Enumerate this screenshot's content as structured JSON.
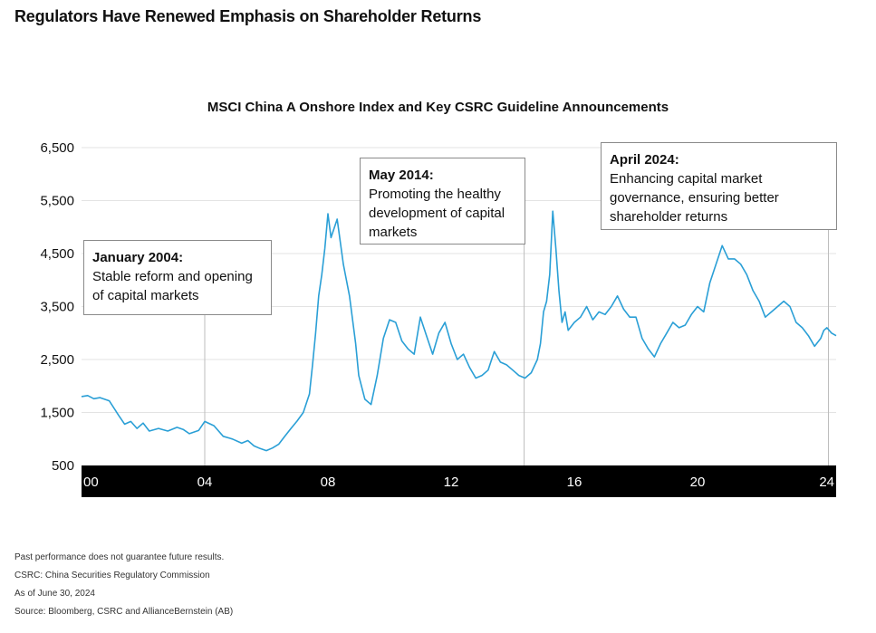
{
  "page_title": "Regulators Have Renewed Emphasis on Shareholder Returns",
  "chart_data": {
    "type": "line",
    "title": "MSCI China A Onshore Index and Key CSRC Guideline Announcements",
    "xlabel": "",
    "ylabel": "",
    "y_ticks": [
      "6,500",
      "5,500",
      "4,500",
      "3,500",
      "2,500",
      "1,500",
      "500"
    ],
    "ylim": [
      500,
      6500
    ],
    "x_ticks": [
      "00",
      "04",
      "08",
      "12",
      "16",
      "20",
      "24"
    ],
    "xlim": [
      2000.0,
      2024.5
    ],
    "grid": "horizontal",
    "series": [
      {
        "name": "",
        "color": "#2a9fd6",
        "x": [
          2000.0,
          2000.2,
          2000.4,
          2000.6,
          2000.9,
          2001.2,
          2001.4,
          2001.6,
          2001.8,
          2002.0,
          2002.2,
          2002.5,
          2002.8,
          2003.1,
          2003.3,
          2003.5,
          2003.8,
          2004.0,
          2004.3,
          2004.6,
          2004.9,
          2005.2,
          2005.4,
          2005.6,
          2005.8,
          2006.0,
          2006.2,
          2006.4,
          2006.6,
          2006.8,
          2007.0,
          2007.2,
          2007.4,
          2007.5,
          2007.6,
          2007.7,
          2007.8,
          2007.9,
          2008.0,
          2008.1,
          2008.3,
          2008.5,
          2008.7,
          2008.9,
          2009.0,
          2009.2,
          2009.4,
          2009.6,
          2009.8,
          2010.0,
          2010.2,
          2010.4,
          2010.6,
          2010.8,
          2011.0,
          2011.2,
          2011.4,
          2011.6,
          2011.8,
          2012.0,
          2012.2,
          2012.4,
          2012.6,
          2012.8,
          2013.0,
          2013.2,
          2013.4,
          2013.6,
          2013.8,
          2014.0,
          2014.2,
          2014.4,
          2014.6,
          2014.8,
          2014.9,
          2015.0,
          2015.1,
          2015.2,
          2015.3,
          2015.4,
          2015.5,
          2015.6,
          2015.7,
          2015.8,
          2016.0,
          2016.2,
          2016.4,
          2016.6,
          2016.8,
          2017.0,
          2017.2,
          2017.4,
          2017.6,
          2017.8,
          2018.0,
          2018.2,
          2018.4,
          2018.6,
          2018.8,
          2019.0,
          2019.2,
          2019.4,
          2019.6,
          2019.8,
          2020.0,
          2020.2,
          2020.4,
          2020.6,
          2020.8,
          2021.0,
          2021.2,
          2021.4,
          2021.6,
          2021.8,
          2022.0,
          2022.2,
          2022.4,
          2022.6,
          2022.8,
          2023.0,
          2023.2,
          2023.4,
          2023.6,
          2023.8,
          2024.0,
          2024.1,
          2024.2,
          2024.35,
          2024.5
        ],
        "values": [
          1800,
          1820,
          1760,
          1780,
          1720,
          1450,
          1280,
          1330,
          1200,
          1300,
          1150,
          1200,
          1150,
          1220,
          1180,
          1100,
          1160,
          1330,
          1250,
          1050,
          1000,
          920,
          970,
          870,
          820,
          780,
          830,
          900,
          1050,
          1200,
          1340,
          1500,
          1850,
          2400,
          3000,
          3700,
          4100,
          4600,
          5250,
          4800,
          5150,
          4300,
          3700,
          2800,
          2200,
          1750,
          1650,
          2200,
          2900,
          3250,
          3200,
          2850,
          2700,
          2600,
          3300,
          2950,
          2600,
          3000,
          3200,
          2800,
          2500,
          2600,
          2350,
          2150,
          2200,
          2300,
          2650,
          2450,
          2400,
          2300,
          2200,
          2150,
          2250,
          2500,
          2800,
          3400,
          3600,
          4100,
          5300,
          4600,
          3800,
          3200,
          3400,
          3050,
          3200,
          3300,
          3500,
          3250,
          3400,
          3350,
          3500,
          3700,
          3450,
          3300,
          3300,
          2900,
          2700,
          2550,
          2800,
          3000,
          3200,
          3100,
          3150,
          3350,
          3500,
          3400,
          3950,
          4300,
          4650,
          4400,
          4400,
          4300,
          4100,
          3800,
          3600,
          3300,
          3400,
          3500,
          3600,
          3500,
          3200,
          3100,
          2950,
          2750,
          2900,
          3050,
          3100,
          3000,
          2950
        ]
      }
    ],
    "annotations": [
      {
        "date": "January 2004:",
        "text": "Stable reform and opening of capital markets",
        "x": 2004.0
      },
      {
        "date": "May 2014:",
        "text": "Promoting the healthy development of capital markets",
        "x": 2014.37
      },
      {
        "date": "April 2024:",
        "text": "Enhancing capital market governance, ensuring better shareholder returns",
        "x": 2024.25
      }
    ]
  },
  "footnotes": [
    "Past performance does not guarantee future results.",
    "CSRC: China Securities Regulatory Commission",
    "As of June 30, 2024",
    "Source: Bloomberg, CSRC and AllianceBernstein (AB)"
  ]
}
